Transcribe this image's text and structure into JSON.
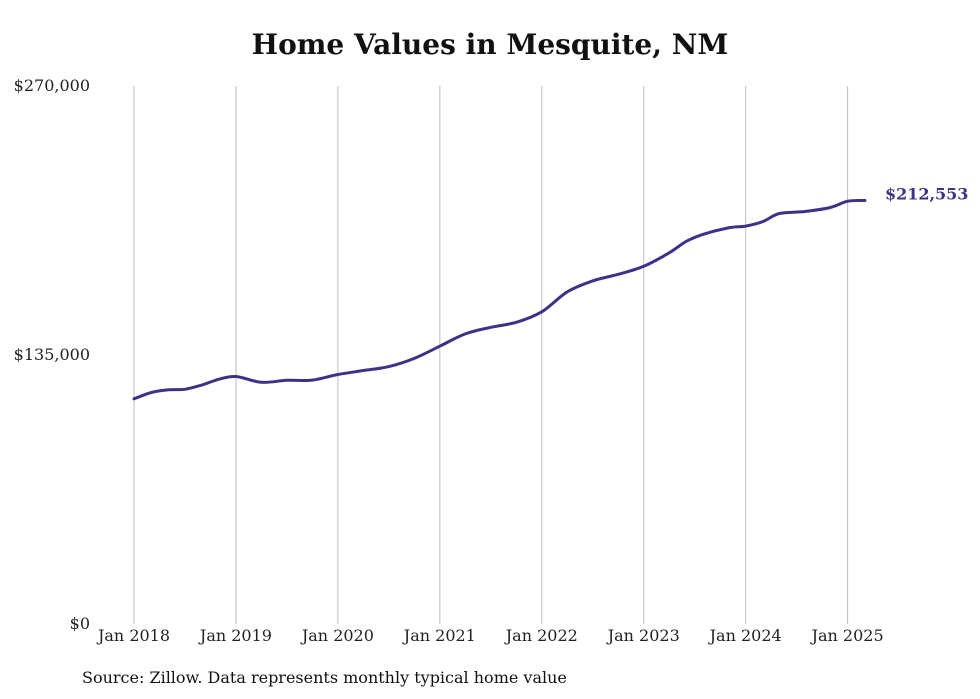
{
  "chart_data": {
    "type": "line",
    "title": "Home Values in Mesquite, NM",
    "source": "Source: Zillow. Data represents monthly typical home value",
    "y_ticks": [
      {
        "value": 0,
        "label": "$0"
      },
      {
        "value": 135000,
        "label": "$135,000"
      },
      {
        "value": 270000,
        "label": "$270,000"
      }
    ],
    "ylim": [
      0,
      270000
    ],
    "x_ticks": [
      {
        "year": 2018,
        "label": "Jan 2018"
      },
      {
        "year": 2019,
        "label": "Jan 2019"
      },
      {
        "year": 2020,
        "label": "Jan 2020"
      },
      {
        "year": 2021,
        "label": "Jan 2021"
      },
      {
        "year": 2022,
        "label": "Jan 2022"
      },
      {
        "year": 2023,
        "label": "Jan 2023"
      },
      {
        "year": 2024,
        "label": "Jan 2024"
      },
      {
        "year": 2025,
        "label": "Jan 2025"
      }
    ],
    "xlim": [
      2018,
      2025.2
    ],
    "grid": "vertical",
    "series": [
      {
        "color": "#3d3188",
        "end_label": "$212,553",
        "points": [
          [
            2018.0,
            113000
          ],
          [
            2018.17,
            116200
          ],
          [
            2018.33,
            117500
          ],
          [
            2018.5,
            117800
          ],
          [
            2018.67,
            120000
          ],
          [
            2018.83,
            122800
          ],
          [
            2019.0,
            124200
          ],
          [
            2019.25,
            121300
          ],
          [
            2019.5,
            122300
          ],
          [
            2019.75,
            122400
          ],
          [
            2020.0,
            125200
          ],
          [
            2020.25,
            127200
          ],
          [
            2020.5,
            129200
          ],
          [
            2020.75,
            133300
          ],
          [
            2021.0,
            139400
          ],
          [
            2021.25,
            145600
          ],
          [
            2021.5,
            148900
          ],
          [
            2021.75,
            151400
          ],
          [
            2022.0,
            156700
          ],
          [
            2022.25,
            166700
          ],
          [
            2022.5,
            172200
          ],
          [
            2022.75,
            175500
          ],
          [
            2023.0,
            179500
          ],
          [
            2023.25,
            186300
          ],
          [
            2023.42,
            192100
          ],
          [
            2023.58,
            195500
          ],
          [
            2023.83,
            198800
          ],
          [
            2024.0,
            199700
          ],
          [
            2024.17,
            202000
          ],
          [
            2024.33,
            206000
          ],
          [
            2024.58,
            207000
          ],
          [
            2024.83,
            209000
          ],
          [
            2025.0,
            212200
          ],
          [
            2025.17,
            212553
          ]
        ]
      }
    ]
  }
}
